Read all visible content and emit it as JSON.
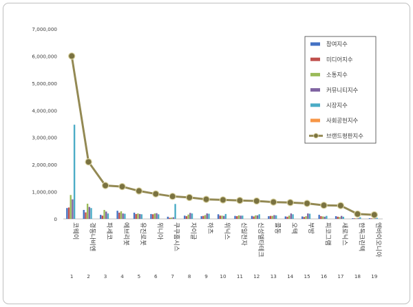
{
  "chart_data": {
    "type": "bar+line",
    "categories": [
      {
        "name": "코웨이",
        "num": "1"
      },
      {
        "name": "경동나비엔",
        "num": "2"
      },
      {
        "name": "파세코",
        "num": "3"
      },
      {
        "name": "에브리봇",
        "num": "4"
      },
      {
        "name": "유진로봇",
        "num": "5"
      },
      {
        "name": "위니아",
        "num": "6"
      },
      {
        "name": "쿠쿠홈시스",
        "num": "7"
      },
      {
        "name": "자이글",
        "num": "8"
      },
      {
        "name": "하츠",
        "num": "9"
      },
      {
        "name": "위닉스",
        "num": "10"
      },
      {
        "name": "신일전자",
        "num": "11"
      },
      {
        "name": "신성델타테크",
        "num": "12"
      },
      {
        "name": "콜동",
        "num": "13"
      },
      {
        "name": "오텍",
        "num": "14"
      },
      {
        "name": "부방",
        "num": "15"
      },
      {
        "name": "피코그램",
        "num": "16"
      },
      {
        "name": "새로닉스",
        "num": "17"
      },
      {
        "name": "한독크린텍",
        "num": "18"
      },
      {
        "name": "엔바이오니아",
        "num": "19"
      }
    ],
    "series": [
      {
        "name": "참여지수",
        "kind": "bar",
        "color": "#4472c4",
        "values": [
          400000,
          330000,
          150000,
          300000,
          230000,
          180000,
          80000,
          120000,
          100000,
          170000,
          110000,
          110000,
          100000,
          90000,
          90000,
          150000,
          100000,
          25000,
          25000
        ]
      },
      {
        "name": "미디어지수",
        "kind": "bar",
        "color": "#c0504d",
        "values": [
          420000,
          240000,
          120000,
          230000,
          180000,
          170000,
          40000,
          100000,
          110000,
          120000,
          100000,
          90000,
          110000,
          80000,
          70000,
          100000,
          80000,
          20000,
          20000
        ]
      },
      {
        "name": "소통지수",
        "kind": "bar",
        "color": "#9bbb59",
        "values": [
          880000,
          560000,
          330000,
          280000,
          200000,
          200000,
          50000,
          160000,
          140000,
          120000,
          130000,
          130000,
          110000,
          120000,
          100000,
          90000,
          70000,
          20000,
          15000
        ]
      },
      {
        "name": "커뮤니티지수",
        "kind": "bar",
        "color": "#8064a2",
        "values": [
          720000,
          440000,
          270000,
          200000,
          180000,
          210000,
          60000,
          220000,
          200000,
          110000,
          120000,
          130000,
          140000,
          200000,
          200000,
          80000,
          110000,
          30000,
          20000
        ]
      },
      {
        "name": "시장지수",
        "kind": "bar",
        "color": "#4bacc6",
        "values": [
          3470000,
          400000,
          200000,
          190000,
          170000,
          170000,
          550000,
          200000,
          190000,
          180000,
          120000,
          170000,
          130000,
          170000,
          190000,
          110000,
          80000,
          60000,
          40000
        ]
      },
      {
        "name": "사회공헌지수",
        "kind": "bar",
        "color": "#f79646",
        "values": [
          0,
          0,
          0,
          0,
          0,
          0,
          0,
          0,
          0,
          0,
          0,
          0,
          0,
          0,
          0,
          0,
          0,
          0,
          0
        ]
      },
      {
        "name": "브랜드평판지수",
        "kind": "line",
        "color": "#938953",
        "values": [
          6000000,
          2100000,
          1230000,
          1190000,
          1030000,
          920000,
          830000,
          790000,
          720000,
          700000,
          680000,
          660000,
          620000,
          600000,
          570000,
          500000,
          490000,
          180000,
          150000
        ]
      }
    ],
    "y_ticks": [
      "0",
      "1,000,000",
      "2,000,000",
      "3,000,000",
      "4,000,000",
      "5,000,000",
      "6,000,000",
      "7,000,000"
    ],
    "ylim": [
      0,
      7000000
    ],
    "grid": false,
    "legend_position": "top-right"
  }
}
